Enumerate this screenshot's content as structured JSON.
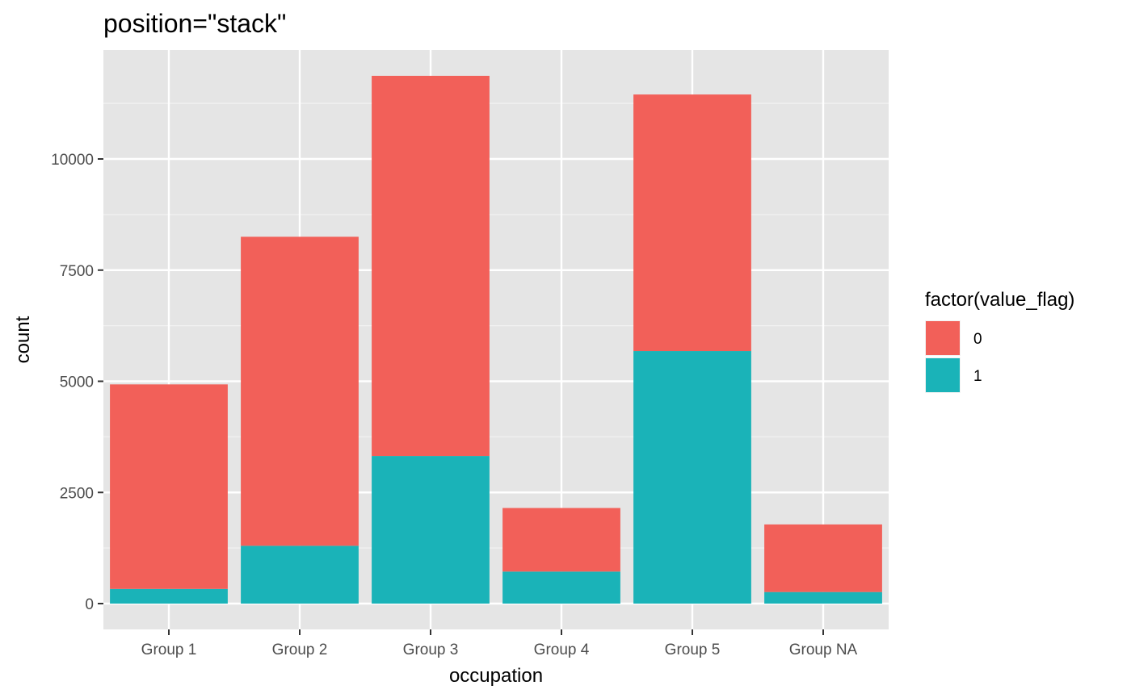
{
  "chart_data": {
    "type": "bar",
    "stacked": true,
    "title": "position=\"stack\"",
    "xlabel": "occupation",
    "ylabel": "count",
    "categories": [
      "Group 1",
      "Group 2",
      "Group 3",
      "Group 4",
      "Group 5",
      "Group NA"
    ],
    "series": [
      {
        "name": "0",
        "color": "#F26059",
        "values": [
          4600,
          6950,
          8550,
          1430,
          5770,
          1520
        ]
      },
      {
        "name": "1",
        "color": "#1AB3B8",
        "values": [
          330,
          1300,
          3320,
          720,
          5680,
          260
        ]
      }
    ],
    "ylim": [
      0,
      12300
    ],
    "yticks": [
      0,
      2500,
      5000,
      7500,
      10000
    ],
    "ytick_labels": [
      "0",
      "2500",
      "5000",
      "7500",
      "10000"
    ],
    "legend": {
      "title": "factor(value_flag)",
      "placement": "right"
    },
    "grid": true,
    "panel_color": "#E5E5E5"
  }
}
